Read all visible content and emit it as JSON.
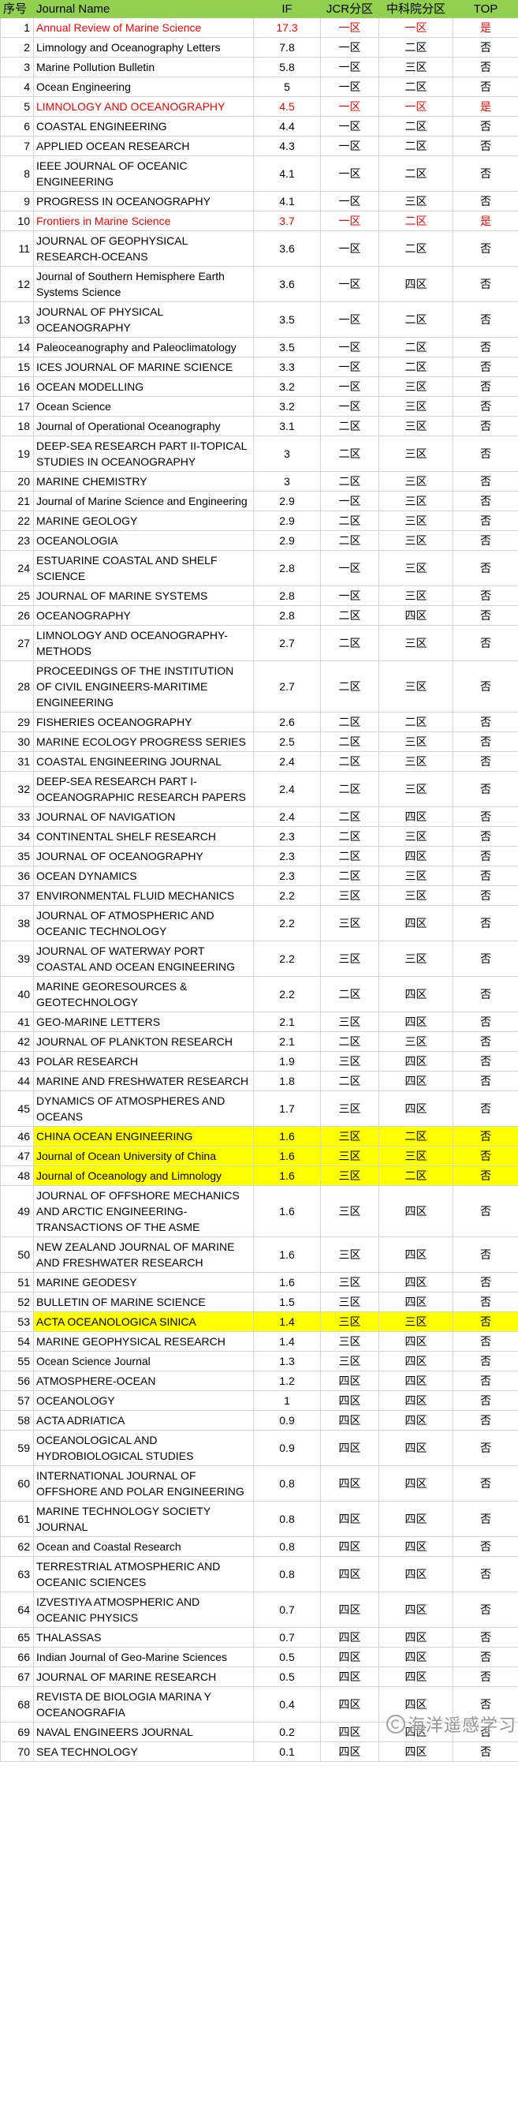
{
  "header": {
    "columns": [
      "序号",
      "Journal Name",
      "IF",
      "JCR分区",
      "中科院分区",
      "TOP"
    ]
  },
  "colors": {
    "header_bg": "#92D050",
    "red_text": "#FF0000",
    "yellow_bg": "#FFFF00",
    "grid": "#D4D4D4"
  },
  "watermark": {
    "text": "海洋遥感学习",
    "icon": "circle-logo"
  },
  "rows": [
    {
      "no": "1",
      "name": "Annual Review of Marine Science",
      "if": "17.3",
      "jcr": "一区",
      "cas": "一区",
      "top": "是",
      "style": "red"
    },
    {
      "no": "2",
      "name": "Limnology and Oceanography Letters",
      "if": "7.8",
      "jcr": "一区",
      "cas": "二区",
      "top": "否",
      "style": ""
    },
    {
      "no": "3",
      "name": "Marine Pollution Bulletin",
      "if": "5.8",
      "jcr": "一区",
      "cas": "三区",
      "top": "否",
      "style": ""
    },
    {
      "no": "4",
      "name": "Ocean Engineering",
      "if": "5",
      "jcr": "一区",
      "cas": "二区",
      "top": "否",
      "style": ""
    },
    {
      "no": "5",
      "name": "LIMNOLOGY AND OCEANOGRAPHY",
      "if": "4.5",
      "jcr": "一区",
      "cas": "一区",
      "top": "是",
      "style": "red"
    },
    {
      "no": "6",
      "name": "COASTAL ENGINEERING",
      "if": "4.4",
      "jcr": "一区",
      "cas": "二区",
      "top": "否",
      "style": ""
    },
    {
      "no": "7",
      "name": "APPLIED OCEAN RESEARCH",
      "if": "4.3",
      "jcr": "一区",
      "cas": "二区",
      "top": "否",
      "style": ""
    },
    {
      "no": "8",
      "name": "IEEE JOURNAL OF OCEANIC ENGINEERING",
      "if": "4.1",
      "jcr": "一区",
      "cas": "二区",
      "top": "否",
      "style": ""
    },
    {
      "no": "9",
      "name": "PROGRESS IN OCEANOGRAPHY",
      "if": "4.1",
      "jcr": "一区",
      "cas": "三区",
      "top": "否",
      "style": ""
    },
    {
      "no": "10",
      "name": "Frontiers in Marine Science",
      "if": "3.7",
      "jcr": "一区",
      "cas": "二区",
      "top": "是",
      "style": "red"
    },
    {
      "no": "11",
      "name": "JOURNAL OF GEOPHYSICAL RESEARCH-OCEANS",
      "if": "3.6",
      "jcr": "一区",
      "cas": "二区",
      "top": "否",
      "style": ""
    },
    {
      "no": "12",
      "name": "Journal of Southern Hemisphere Earth Systems Science",
      "if": "3.6",
      "jcr": "一区",
      "cas": "四区",
      "top": "否",
      "style": ""
    },
    {
      "no": "13",
      "name": "JOURNAL OF PHYSICAL OCEANOGRAPHY",
      "if": "3.5",
      "jcr": "一区",
      "cas": "二区",
      "top": "否",
      "style": ""
    },
    {
      "no": "14",
      "name": "Paleoceanography and Paleoclimatology",
      "if": "3.5",
      "jcr": "一区",
      "cas": "二区",
      "top": "否",
      "style": ""
    },
    {
      "no": "15",
      "name": "ICES JOURNAL OF MARINE SCIENCE",
      "if": "3.3",
      "jcr": "一区",
      "cas": "二区",
      "top": "否",
      "style": ""
    },
    {
      "no": "16",
      "name": "OCEAN MODELLING",
      "if": "3.2",
      "jcr": "一区",
      "cas": "三区",
      "top": "否",
      "style": ""
    },
    {
      "no": "17",
      "name": "Ocean Science",
      "if": "3.2",
      "jcr": "一区",
      "cas": "三区",
      "top": "否",
      "style": ""
    },
    {
      "no": "18",
      "name": "Journal of Operational Oceanography",
      "if": "3.1",
      "jcr": "二区",
      "cas": "三区",
      "top": "否",
      "style": ""
    },
    {
      "no": "19",
      "name": "DEEP-SEA RESEARCH PART II-TOPICAL STUDIES IN OCEANOGRAPHY",
      "if": "3",
      "jcr": "二区",
      "cas": "三区",
      "top": "否",
      "style": ""
    },
    {
      "no": "20",
      "name": "MARINE CHEMISTRY",
      "if": "3",
      "jcr": "二区",
      "cas": "三区",
      "top": "否",
      "style": ""
    },
    {
      "no": "21",
      "name": "Journal of Marine Science and Engineering",
      "if": "2.9",
      "jcr": "一区",
      "cas": "三区",
      "top": "否",
      "style": ""
    },
    {
      "no": "22",
      "name": "MARINE GEOLOGY",
      "if": "2.9",
      "jcr": "二区",
      "cas": "三区",
      "top": "否",
      "style": ""
    },
    {
      "no": "23",
      "name": "OCEANOLOGIA",
      "if": "2.9",
      "jcr": "二区",
      "cas": "三区",
      "top": "否",
      "style": ""
    },
    {
      "no": "24",
      "name": "ESTUARINE COASTAL AND SHELF SCIENCE",
      "if": "2.8",
      "jcr": "一区",
      "cas": "三区",
      "top": "否",
      "style": ""
    },
    {
      "no": "25",
      "name": "JOURNAL OF MARINE SYSTEMS",
      "if": "2.8",
      "jcr": "一区",
      "cas": "三区",
      "top": "否",
      "style": ""
    },
    {
      "no": "26",
      "name": "OCEANOGRAPHY",
      "if": "2.8",
      "jcr": "二区",
      "cas": "四区",
      "top": "否",
      "style": ""
    },
    {
      "no": "27",
      "name": "LIMNOLOGY AND OCEANOGRAPHY-METHODS",
      "if": "2.7",
      "jcr": "二区",
      "cas": "三区",
      "top": "否",
      "style": ""
    },
    {
      "no": "28",
      "name": "PROCEEDINGS OF THE INSTITUTION OF CIVIL ENGINEERS-MARITIME ENGINEERING",
      "if": "2.7",
      "jcr": "二区",
      "cas": "三区",
      "top": "否",
      "style": ""
    },
    {
      "no": "29",
      "name": "FISHERIES OCEANOGRAPHY",
      "if": "2.6",
      "jcr": "二区",
      "cas": "二区",
      "top": "否",
      "style": ""
    },
    {
      "no": "30",
      "name": "MARINE ECOLOGY PROGRESS SERIES",
      "if": "2.5",
      "jcr": "二区",
      "cas": "三区",
      "top": "否",
      "style": ""
    },
    {
      "no": "31",
      "name": "COASTAL ENGINEERING JOURNAL",
      "if": "2.4",
      "jcr": "二区",
      "cas": "三区",
      "top": "否",
      "style": ""
    },
    {
      "no": "32",
      "name": "DEEP-SEA RESEARCH PART I-OCEANOGRAPHIC RESEARCH PAPERS",
      "if": "2.4",
      "jcr": "二区",
      "cas": "三区",
      "top": "否",
      "style": ""
    },
    {
      "no": "33",
      "name": "JOURNAL OF NAVIGATION",
      "if": "2.4",
      "jcr": "二区",
      "cas": "四区",
      "top": "否",
      "style": ""
    },
    {
      "no": "34",
      "name": "CONTINENTAL SHELF RESEARCH",
      "if": "2.3",
      "jcr": "二区",
      "cas": "三区",
      "top": "否",
      "style": ""
    },
    {
      "no": "35",
      "name": "JOURNAL OF OCEANOGRAPHY",
      "if": "2.3",
      "jcr": "二区",
      "cas": "四区",
      "top": "否",
      "style": ""
    },
    {
      "no": "36",
      "name": "OCEAN DYNAMICS",
      "if": "2.3",
      "jcr": "二区",
      "cas": "三区",
      "top": "否",
      "style": ""
    },
    {
      "no": "37",
      "name": "ENVIRONMENTAL FLUID MECHANICS",
      "if": "2.2",
      "jcr": "三区",
      "cas": "三区",
      "top": "否",
      "style": ""
    },
    {
      "no": "38",
      "name": "JOURNAL OF ATMOSPHERIC AND OCEANIC TECHNOLOGY",
      "if": "2.2",
      "jcr": "三区",
      "cas": "四区",
      "top": "否",
      "style": ""
    },
    {
      "no": "39",
      "name": "JOURNAL OF WATERWAY PORT COASTAL AND OCEAN ENGINEERING",
      "if": "2.2",
      "jcr": "三区",
      "cas": "三区",
      "top": "否",
      "style": ""
    },
    {
      "no": "40",
      "name": "MARINE GEORESOURCES & GEOTECHNOLOGY",
      "if": "2.2",
      "jcr": "二区",
      "cas": "四区",
      "top": "否",
      "style": ""
    },
    {
      "no": "41",
      "name": "GEO-MARINE LETTERS",
      "if": "2.1",
      "jcr": "三区",
      "cas": "四区",
      "top": "否",
      "style": ""
    },
    {
      "no": "42",
      "name": "JOURNAL OF PLANKTON RESEARCH",
      "if": "2.1",
      "jcr": "二区",
      "cas": "三区",
      "top": "否",
      "style": ""
    },
    {
      "no": "43",
      "name": "POLAR RESEARCH",
      "if": "1.9",
      "jcr": "三区",
      "cas": "四区",
      "top": "否",
      "style": ""
    },
    {
      "no": "44",
      "name": "MARINE AND FRESHWATER RESEARCH",
      "if": "1.8",
      "jcr": "二区",
      "cas": "四区",
      "top": "否",
      "style": ""
    },
    {
      "no": "45",
      "name": "DYNAMICS OF ATMOSPHERES AND OCEANS",
      "if": "1.7",
      "jcr": "三区",
      "cas": "四区",
      "top": "否",
      "style": ""
    },
    {
      "no": "46",
      "name": "CHINA OCEAN ENGINEERING",
      "if": "1.6",
      "jcr": "三区",
      "cas": "二区",
      "top": "否",
      "style": "yellow"
    },
    {
      "no": "47",
      "name": "Journal of Ocean University of China",
      "if": "1.6",
      "jcr": "三区",
      "cas": "三区",
      "top": "否",
      "style": "yellow"
    },
    {
      "no": "48",
      "name": "Journal of Oceanology and Limnology",
      "if": "1.6",
      "jcr": "三区",
      "cas": "二区",
      "top": "否",
      "style": "yellow"
    },
    {
      "no": "49",
      "name": "JOURNAL OF OFFSHORE MECHANICS AND ARCTIC ENGINEERING-TRANSACTIONS OF THE ASME",
      "if": "1.6",
      "jcr": "三区",
      "cas": "四区",
      "top": "否",
      "style": ""
    },
    {
      "no": "50",
      "name": "NEW ZEALAND JOURNAL OF MARINE AND FRESHWATER RESEARCH",
      "if": "1.6",
      "jcr": "三区",
      "cas": "四区",
      "top": "否",
      "style": ""
    },
    {
      "no": "51",
      "name": "MARINE GEODESY",
      "if": "1.6",
      "jcr": "三区",
      "cas": "四区",
      "top": "否",
      "style": ""
    },
    {
      "no": "52",
      "name": "BULLETIN OF MARINE SCIENCE",
      "if": "1.5",
      "jcr": "三区",
      "cas": "四区",
      "top": "否",
      "style": ""
    },
    {
      "no": "53",
      "name": "ACTA OCEANOLOGICA SINICA",
      "if": "1.4",
      "jcr": "三区",
      "cas": "三区",
      "top": "否",
      "style": "yellow"
    },
    {
      "no": "54",
      "name": "MARINE GEOPHYSICAL RESEARCH",
      "if": "1.4",
      "jcr": "三区",
      "cas": "四区",
      "top": "否",
      "style": ""
    },
    {
      "no": "55",
      "name": "Ocean Science Journal",
      "if": "1.3",
      "jcr": "三区",
      "cas": "四区",
      "top": "否",
      "style": ""
    },
    {
      "no": "56",
      "name": "ATMOSPHERE-OCEAN",
      "if": "1.2",
      "jcr": "四区",
      "cas": "四区",
      "top": "否",
      "style": ""
    },
    {
      "no": "57",
      "name": "OCEANOLOGY",
      "if": "1",
      "jcr": "四区",
      "cas": "四区",
      "top": "否",
      "style": ""
    },
    {
      "no": "58",
      "name": "ACTA ADRIATICA",
      "if": "0.9",
      "jcr": "四区",
      "cas": "四区",
      "top": "否",
      "style": ""
    },
    {
      "no": "59",
      "name": "OCEANOLOGICAL AND HYDROBIOLOGICAL STUDIES",
      "if": "0.9",
      "jcr": "四区",
      "cas": "四区",
      "top": "否",
      "style": ""
    },
    {
      "no": "60",
      "name": "INTERNATIONAL JOURNAL OF OFFSHORE AND POLAR ENGINEERING",
      "if": "0.8",
      "jcr": "四区",
      "cas": "四区",
      "top": "否",
      "style": ""
    },
    {
      "no": "61",
      "name": "MARINE TECHNOLOGY SOCIETY JOURNAL",
      "if": "0.8",
      "jcr": "四区",
      "cas": "四区",
      "top": "否",
      "style": ""
    },
    {
      "no": "62",
      "name": "Ocean and Coastal Research",
      "if": "0.8",
      "jcr": "四区",
      "cas": "四区",
      "top": "否",
      "style": ""
    },
    {
      "no": "63",
      "name": "TERRESTRIAL ATMOSPHERIC AND OCEANIC SCIENCES",
      "if": "0.8",
      "jcr": "四区",
      "cas": "四区",
      "top": "否",
      "style": ""
    },
    {
      "no": "64",
      "name": "IZVESTIYA ATMOSPHERIC AND OCEANIC PHYSICS",
      "if": "0.7",
      "jcr": "四区",
      "cas": "四区",
      "top": "否",
      "style": ""
    },
    {
      "no": "65",
      "name": "THALASSAS",
      "if": "0.7",
      "jcr": "四区",
      "cas": "四区",
      "top": "否",
      "style": ""
    },
    {
      "no": "66",
      "name": "Indian Journal of Geo-Marine Sciences",
      "if": "0.5",
      "jcr": "四区",
      "cas": "四区",
      "top": "否",
      "style": ""
    },
    {
      "no": "67",
      "name": "JOURNAL OF MARINE RESEARCH",
      "if": "0.5",
      "jcr": "四区",
      "cas": "四区",
      "top": "否",
      "style": ""
    },
    {
      "no": "68",
      "name": "REVISTA DE BIOLOGIA MARINA Y OCEANOGRAFIA",
      "if": "0.4",
      "jcr": "四区",
      "cas": "四区",
      "top": "否",
      "style": ""
    },
    {
      "no": "69",
      "name": "NAVAL ENGINEERS JOURNAL",
      "if": "0.2",
      "jcr": "四区",
      "cas": "四区",
      "top": "否",
      "style": ""
    },
    {
      "no": "70",
      "name": "SEA TECHNOLOGY",
      "if": "0.1",
      "jcr": "四区",
      "cas": "四区",
      "top": "否",
      "style": ""
    }
  ]
}
